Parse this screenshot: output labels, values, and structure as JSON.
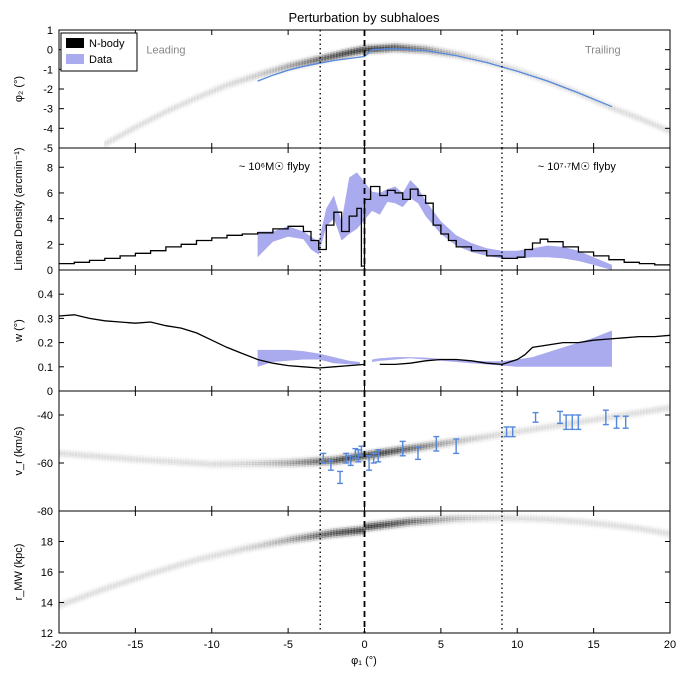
{
  "chart_data": {
    "type": "multi-panel",
    "title": "Perturbation by subhaloes",
    "xlabel": "φ₁ (°)",
    "xlim": [
      -20,
      20
    ],
    "xticks": [
      -20,
      -15,
      -10,
      -5,
      0,
      5,
      10,
      15,
      20
    ],
    "vlines": [
      {
        "x": -2.9,
        "style": "dotted"
      },
      {
        "x": 0,
        "style": "dashed"
      },
      {
        "x": 9,
        "style": "dotted"
      }
    ],
    "legend": {
      "placement": "top-left",
      "entries": [
        {
          "label": "N-body",
          "color": "#000000"
        },
        {
          "label": "Data",
          "color": "#aaaaee"
        }
      ]
    },
    "panels": [
      {
        "id": "phi2",
        "ylabel": "φ₂ (°)",
        "ylim": [
          -5,
          1
        ],
        "yticks": [
          1,
          0,
          -1,
          -2,
          -3,
          -4,
          -5
        ],
        "texts": [
          {
            "text": "Leading",
            "x": -13,
            "y": 0,
            "color": "#888888"
          },
          {
            "text": "Trailing",
            "x": 15.6,
            "y": 0,
            "color": "#888888"
          }
        ],
        "model_track": {
          "color": "#5588dd",
          "x": [
            -7,
            -6,
            -5,
            -4,
            -3,
            -2,
            -1,
            0,
            0.5,
            2,
            4,
            6,
            8,
            10,
            12,
            14,
            16.2
          ],
          "y": [
            -1.6,
            -1.3,
            -1.05,
            -0.85,
            -0.7,
            -0.55,
            -0.45,
            -0.35,
            0.0,
            0.05,
            -0.05,
            -0.3,
            -0.65,
            -1.1,
            -1.6,
            -2.2,
            -2.9
          ]
        },
        "nbody_track": {
          "x": [
            -17,
            -15,
            -13,
            -11,
            -9,
            -7,
            -5,
            -3,
            -1,
            0,
            2,
            4,
            6,
            8,
            10,
            12,
            14,
            16,
            18,
            20
          ],
          "y": [
            -4.8,
            -3.95,
            -3.15,
            -2.45,
            -1.8,
            -1.3,
            -0.85,
            -0.5,
            -0.15,
            0.0,
            0.1,
            0.0,
            -0.25,
            -0.6,
            -1.05,
            -1.6,
            -2.2,
            -2.9,
            -3.5,
            -4.15
          ]
        }
      },
      {
        "id": "density",
        "ylabel": "Linear Density (arcmin⁻¹)",
        "ylim": [
          0,
          9.5
        ],
        "yticks": [
          0,
          2,
          4,
          6,
          8
        ],
        "texts": [
          {
            "text": "~ 10⁶M☉ flyby",
            "x": -5.9,
            "y": 8.1,
            "color": "#000000"
          },
          {
            "text": "~ 10⁷·⁷M☉ flyby",
            "x": 13.9,
            "y": 8.1,
            "color": "#000000"
          }
        ],
        "histogram": {
          "x": [
            -20,
            -19,
            -18,
            -17,
            -16,
            -15,
            -14,
            -13,
            -12,
            -11,
            -10,
            -9,
            -8,
            -7,
            -6,
            -5,
            -4,
            -3.5,
            -3,
            -2.5,
            -2,
            -1.5,
            -1,
            -0.5,
            -0.2,
            0,
            0.4,
            1,
            1.5,
            2,
            2.5,
            3,
            3.5,
            4,
            4.5,
            5,
            5.5,
            6,
            7,
            8,
            9,
            10,
            10.5,
            11,
            11.5,
            12,
            13,
            14,
            15,
            16,
            17,
            18,
            19,
            20
          ],
          "y": [
            0.5,
            0.6,
            0.75,
            0.9,
            1.1,
            1.3,
            1.5,
            1.8,
            2.0,
            2.3,
            2.5,
            2.7,
            2.8,
            2.9,
            3.2,
            3.4,
            3.0,
            2.3,
            1.6,
            3.5,
            4.5,
            3.0,
            4.2,
            4.8,
            0.3,
            5.5,
            6.5,
            5.8,
            6.2,
            6.0,
            5.5,
            6.3,
            5.8,
            5.2,
            3.5,
            2.8,
            2.3,
            1.8,
            1.5,
            1.1,
            0.9,
            1.0,
            1.6,
            2.1,
            2.4,
            2.2,
            1.8,
            1.4,
            1.1,
            0.8,
            0.6,
            0.5,
            0.4,
            0.3
          ]
        },
        "data_band": {
          "color": "#aaaaee",
          "x": [
            -7,
            -6,
            -5,
            -4,
            -3.5,
            -3,
            -2.5,
            -2,
            -1.5,
            -1,
            -0.5,
            0.5,
            1,
            1.5,
            2,
            2.5,
            3,
            3.5,
            4,
            5,
            6,
            7,
            8,
            9,
            10,
            11,
            12,
            13,
            14,
            15,
            16.2
          ],
          "lo": [
            1.0,
            2.2,
            2.6,
            2.4,
            1.6,
            1.2,
            3.4,
            4.0,
            2.3,
            2.8,
            3.2,
            4.6,
            4.3,
            5.3,
            5.2,
            4.9,
            5.6,
            5.2,
            4.2,
            2.8,
            1.9,
            1.4,
            1.1,
            0.9,
            0.9,
            1.0,
            1.0,
            0.9,
            0.7,
            0.4,
            0.0
          ],
          "hi": [
            3.0,
            3.0,
            3.4,
            3.0,
            2.6,
            2.2,
            4.8,
            5.8,
            3.8,
            7.2,
            7.6,
            6.1,
            6.0,
            6.3,
            6.5,
            6.0,
            7.0,
            6.4,
            5.4,
            3.8,
            2.7,
            2.1,
            1.7,
            1.5,
            1.5,
            1.7,
            1.9,
            1.8,
            1.5,
            1.0,
            0.4
          ]
        }
      },
      {
        "id": "width",
        "ylabel": "w (°)",
        "ylim": [
          0,
          0.5
        ],
        "yticks": [
          0.0,
          0.1,
          0.2,
          0.3,
          0.4
        ],
        "nbody_line": {
          "x": [
            -20,
            -19,
            -18,
            -17,
            -16,
            -15,
            -14,
            -13,
            -12,
            -11,
            -10,
            -9,
            -8,
            -7,
            -6,
            -5,
            -4,
            -3,
            -2,
            -1,
            0
          ],
          "y": [
            0.31,
            0.315,
            0.3,
            0.29,
            0.285,
            0.28,
            0.285,
            0.27,
            0.26,
            0.24,
            0.21,
            0.18,
            0.155,
            0.13,
            0.115,
            0.105,
            0.1,
            0.095,
            0.1,
            0.105,
            0.11
          ]
        },
        "nbody_line2": {
          "x": [
            1,
            2,
            3,
            4,
            5,
            6,
            7,
            8,
            9,
            10,
            10.5,
            11,
            12,
            13,
            14,
            15,
            16,
            17,
            18,
            19,
            20
          ],
          "y": [
            0.11,
            0.11,
            0.115,
            0.125,
            0.13,
            0.13,
            0.125,
            0.115,
            0.11,
            0.13,
            0.15,
            0.18,
            0.19,
            0.2,
            0.2,
            0.21,
            0.215,
            0.22,
            0.225,
            0.225,
            0.23
          ]
        },
        "data_band_left": {
          "color": "#aaaaee",
          "x": [
            -7,
            -6,
            -5,
            -4,
            -3,
            -2,
            -1,
            -0.3
          ],
          "lo": [
            0.1,
            0.12,
            0.125,
            0.13,
            0.13,
            0.115,
            0.11,
            0.11
          ],
          "hi": [
            0.17,
            0.17,
            0.17,
            0.165,
            0.155,
            0.14,
            0.125,
            0.12
          ]
        },
        "data_band_right": {
          "color": "#aaaaee",
          "x": [
            0.5,
            1,
            2,
            3,
            4,
            5,
            6,
            7,
            8,
            9,
            10,
            11,
            12,
            13,
            14,
            15,
            16.2
          ],
          "lo": [
            0.12,
            0.125,
            0.13,
            0.135,
            0.13,
            0.125,
            0.12,
            0.115,
            0.11,
            0.105,
            0.1,
            0.1,
            0.1,
            0.1,
            0.1,
            0.1,
            0.1
          ],
          "hi": [
            0.13,
            0.135,
            0.14,
            0.14,
            0.138,
            0.133,
            0.128,
            0.125,
            0.123,
            0.123,
            0.13,
            0.14,
            0.16,
            0.18,
            0.2,
            0.22,
            0.25
          ]
        }
      },
      {
        "id": "vr",
        "ylabel": "v_r (km/s)",
        "ylim": [
          -80,
          -30
        ],
        "yticks": [
          -40,
          -60,
          -80
        ],
        "nbody_track": {
          "x": [
            -20,
            -15,
            -10,
            -5,
            -2,
            0,
            2,
            5,
            10,
            15,
            20
          ],
          "y": [
            -56,
            -58.5,
            -60.5,
            -60,
            -59,
            -57,
            -55,
            -52,
            -47,
            -42,
            -37
          ]
        },
        "errorbars": {
          "color": "#5588dd",
          "x": [
            -2.7,
            -2.2,
            -1.6,
            -1.2,
            -0.9,
            -0.6,
            -0.4,
            -0.2,
            0.3,
            0.6,
            0.9,
            2.5,
            3.5,
            4.7,
            6,
            9.3,
            9.7,
            11.2,
            12.8,
            13.2,
            13.6,
            14.0,
            15.8,
            16.5,
            17.1
          ],
          "y": [
            -58,
            -61,
            -66,
            -58,
            -59,
            -56,
            -57,
            -55,
            -60,
            -58,
            -57,
            -54,
            -56,
            -52,
            -53,
            -47,
            -47,
            -41,
            -41,
            -43,
            -43,
            -43,
            -41,
            -43,
            -43
          ],
          "err": [
            2,
            2,
            2.5,
            2,
            2,
            2,
            2.5,
            2,
            3,
            2,
            2.5,
            3,
            2.5,
            3,
            3,
            2,
            2,
            2,
            2.5,
            3,
            3,
            3,
            3,
            2.5,
            2.5
          ]
        }
      },
      {
        "id": "rmw",
        "ylabel": "r_MW (kpc)",
        "ylim": [
          12,
          20
        ],
        "yticks": [
          12,
          14,
          16,
          18
        ],
        "nbody_track": {
          "x": [
            -20,
            -17,
            -14,
            -11,
            -8,
            -5,
            -2,
            0,
            0.1,
            3,
            6,
            9,
            12,
            14,
            16,
            18,
            20
          ],
          "y": [
            13.8,
            14.9,
            15.9,
            16.8,
            17.5,
            18.1,
            18.55,
            18.75,
            18.95,
            19.3,
            19.5,
            19.55,
            19.45,
            19.3,
            19.1,
            18.85,
            18.5
          ]
        }
      }
    ]
  }
}
